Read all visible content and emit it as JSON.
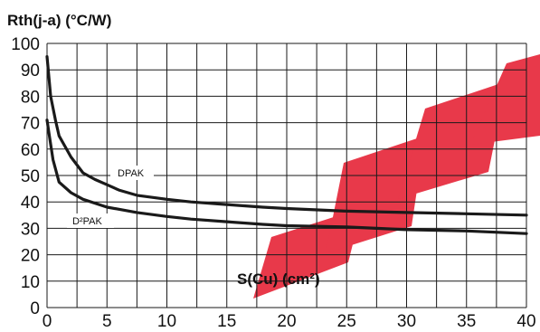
{
  "chart_data": {
    "type": "line",
    "title": "",
    "ylabel": "Rth(j-a) (°C/W)",
    "xlabel": "S(Cu) (cm²)",
    "xlim": [
      0,
      40
    ],
    "ylim": [
      0,
      100
    ],
    "x_ticks": [
      "0",
      "5",
      "10",
      "15",
      "20",
      "25",
      "30",
      "35",
      "40"
    ],
    "y_ticks": [
      "0",
      "10",
      "20",
      "30",
      "40",
      "50",
      "60",
      "70",
      "80",
      "90",
      "100"
    ],
    "grid": true,
    "series": [
      {
        "name": "DPAK",
        "color": "#1a1a1a",
        "x": [
          0,
          0.3,
          0.7,
          1,
          1.5,
          2,
          3,
          4,
          5,
          6,
          7.5,
          10,
          12,
          15,
          18,
          20,
          25,
          30,
          35,
          40
        ],
        "y": [
          95,
          80,
          71,
          65,
          61,
          57,
          51,
          48.5,
          46.5,
          44.5,
          42.5,
          41,
          40,
          39,
          38,
          37.5,
          36.5,
          36,
          35.5,
          35
        ]
      },
      {
        "name": "D²PAK",
        "color": "#1a1a1a",
        "x": [
          0,
          0.2,
          0.5,
          1,
          2,
          3,
          5,
          7.5,
          10,
          12,
          15,
          18,
          20,
          25,
          30,
          35,
          40
        ],
        "y": [
          71,
          65,
          56,
          47.5,
          43.5,
          41,
          38,
          36,
          34.5,
          33.5,
          32.5,
          31.5,
          31,
          30.5,
          29.5,
          29,
          28
        ]
      }
    ],
    "watermark": {
      "color": "#e8394a"
    }
  }
}
